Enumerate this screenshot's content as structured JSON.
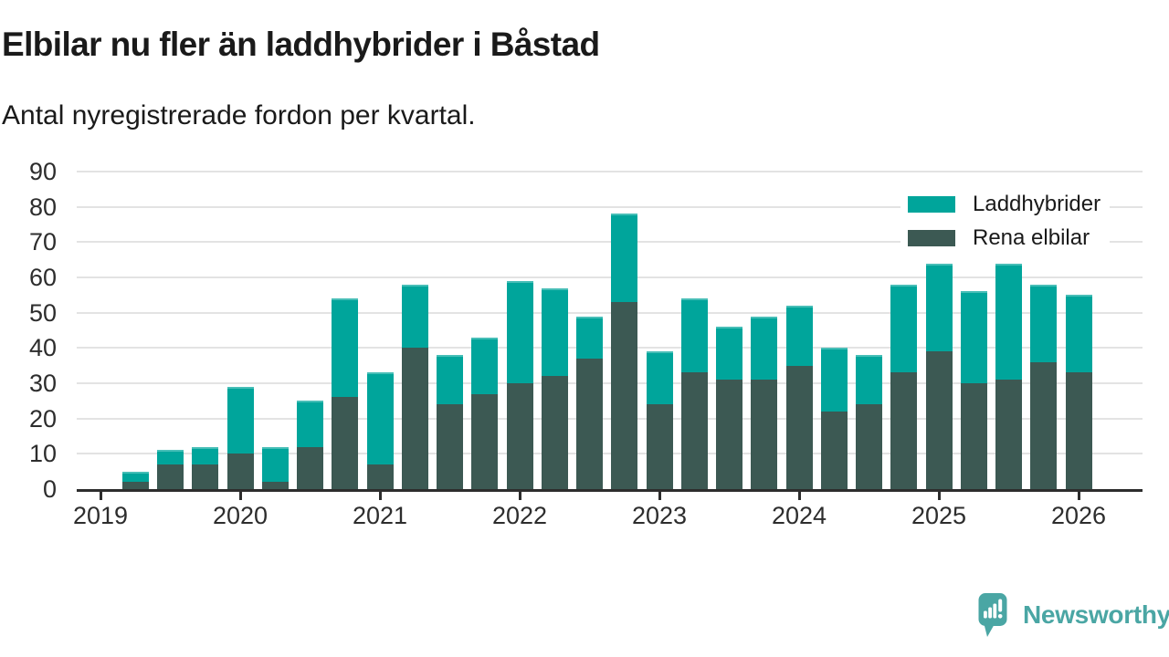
{
  "title": "Elbilar nu fler än laddhybrider i Båstad",
  "subtitle": "Antal nyregistrerade fordon per kvartal.",
  "branding": {
    "text": "Newsworthy",
    "color": "#4AA6A4"
  },
  "colors": {
    "laddhybrider": "#00A59B",
    "rena_elbilar": "#3C5953",
    "grid": "#E3E3E3",
    "axis": "#2D2D2D",
    "text": "#1A1A1A"
  },
  "legend": {
    "items": [
      {
        "label": "Laddhybrider",
        "color": "#00A59B"
      },
      {
        "label": "Rena elbilar",
        "color": "#3C5953"
      }
    ]
  },
  "chart_data": {
    "type": "bar",
    "stacked": true,
    "title": "Elbilar nu fler än laddhybrider i Båstad",
    "subtitle": "Antal nyregistrerade fordon per kvartal.",
    "categories": [
      "2019 Q2",
      "2019 Q3",
      "2019 Q4",
      "2020 Q1",
      "2020 Q2",
      "2020 Q3",
      "2020 Q4",
      "2021 Q1",
      "2021 Q2",
      "2021 Q3",
      "2021 Q4",
      "2022 Q1",
      "2022 Q2",
      "2022 Q3",
      "2022 Q4",
      "2023 Q1",
      "2023 Q2",
      "2023 Q3",
      "2023 Q4",
      "2024 Q1",
      "2024 Q2",
      "2024 Q3",
      "2024 Q4",
      "2025 Q1",
      "2025 Q2",
      "2025 Q3",
      "2025 Q4",
      "2026 Q1"
    ],
    "series": [
      {
        "name": "Rena elbilar",
        "color": "#3C5953",
        "values": [
          2,
          7,
          7,
          10,
          2,
          12,
          26,
          7,
          40,
          24,
          27,
          30,
          32,
          37,
          53,
          24,
          33,
          31,
          31,
          35,
          22,
          24,
          33,
          39,
          30,
          31,
          36,
          33
        ]
      },
      {
        "name": "Laddhybrider",
        "color": "#00A59B",
        "values": [
          3,
          4,
          5,
          19,
          10,
          13,
          28,
          26,
          18,
          14,
          16,
          29,
          25,
          12,
          25,
          15,
          21,
          15,
          18,
          17,
          18,
          14,
          25,
          25,
          26,
          33,
          22,
          22
        ]
      }
    ],
    "stack_totals": [
      5,
      11,
      12,
      29,
      12,
      25,
      54,
      33,
      58,
      38,
      43,
      59,
      57,
      49,
      78,
      39,
      54,
      46,
      49,
      52,
      40,
      38,
      58,
      64,
      56,
      64,
      58,
      55
    ],
    "x_tick_labels": [
      "2019",
      "2020",
      "2021",
      "2022",
      "2023",
      "2024",
      "2025",
      "2026"
    ],
    "ylim": [
      0,
      90
    ],
    "ytick_step": 10,
    "grid": true,
    "legend_position": "top-right",
    "start_offset_quarters": 1
  }
}
